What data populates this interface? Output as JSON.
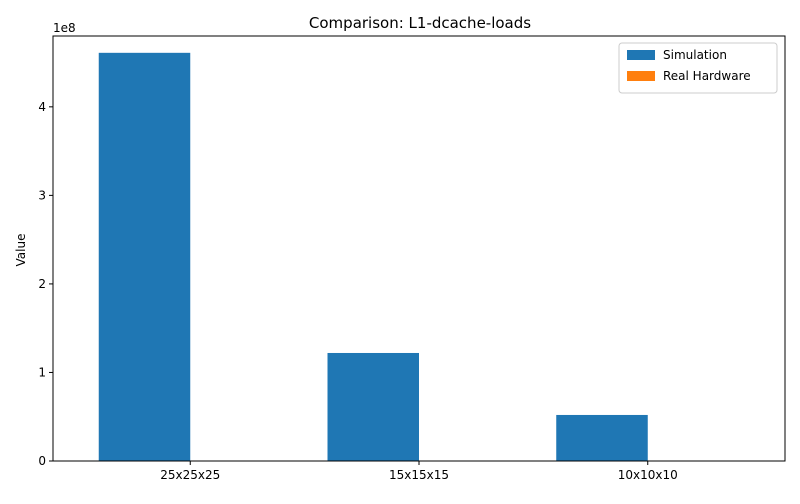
{
  "chart_data": {
    "type": "bar",
    "title": "Comparison: L1-dcache-loads",
    "xlabel": "",
    "ylabel": "Value",
    "y_offset_text": "1e8",
    "categories": [
      "25x25x25",
      "15x15x15",
      "10x10x10"
    ],
    "series": [
      {
        "name": "Simulation",
        "color": "#1f77b4",
        "values": [
          461000000,
          122000000,
          52000000
        ]
      },
      {
        "name": "Real Hardware",
        "color": "#ff7f0e",
        "values": [
          0,
          0,
          0
        ]
      }
    ],
    "ylim": [
      0,
      480000000
    ],
    "yticks": [
      0,
      100000000,
      200000000,
      300000000,
      400000000
    ],
    "ytick_labels": [
      "0",
      "1",
      "2",
      "3",
      "4"
    ],
    "grid": false,
    "legend_position": "top-right"
  }
}
